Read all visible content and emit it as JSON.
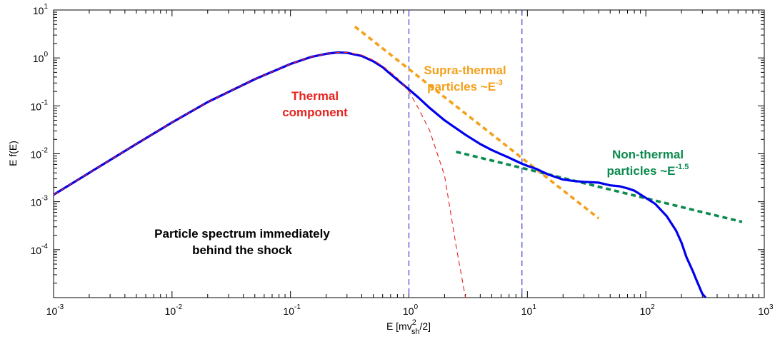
{
  "chart_data": {
    "type": "line",
    "x_scale": "log",
    "y_scale": "log",
    "xlim": [
      0.001,
      1000
    ],
    "ylim": [
      1e-05,
      10
    ],
    "x_ticks": [
      {
        "base": "10",
        "exp": "-3",
        "value": 0.001
      },
      {
        "base": "10",
        "exp": "-2",
        "value": 0.01
      },
      {
        "base": "10",
        "exp": "-1",
        "value": 0.1
      },
      {
        "base": "10",
        "exp": "0",
        "value": 1
      },
      {
        "base": "10",
        "exp": "1",
        "value": 10
      },
      {
        "base": "10",
        "exp": "2",
        "value": 100
      },
      {
        "base": "10",
        "exp": "3",
        "value": 1000
      }
    ],
    "y_ticks": [
      {
        "base": "10",
        "exp": "-4",
        "value": 0.0001
      },
      {
        "base": "10",
        "exp": "-3",
        "value": 0.001
      },
      {
        "base": "10",
        "exp": "-2",
        "value": 0.01
      },
      {
        "base": "10",
        "exp": "-1",
        "value": 0.1
      },
      {
        "base": "10",
        "exp": "0",
        "value": 1
      },
      {
        "base": "10",
        "exp": "1",
        "value": 10
      }
    ],
    "xlabel": {
      "pre": "E [mv",
      "sup": "2",
      "sub": "sh",
      "post": "/2]"
    },
    "ylabel": "E f(E)",
    "vlines": [
      1,
      9
    ],
    "series": [
      {
        "key": "spectrum",
        "color": "#0000ee",
        "style": "solid",
        "x": [
          0.001,
          0.002,
          0.005,
          0.01,
          0.02,
          0.05,
          0.1,
          0.15,
          0.2,
          0.25,
          0.3,
          0.4,
          0.5,
          0.6,
          0.7,
          0.8,
          1,
          1.2,
          1.5,
          2,
          3,
          4,
          5,
          6,
          7,
          8,
          9,
          10,
          12,
          15,
          20,
          25,
          30,
          40,
          50,
          60,
          70,
          80,
          100,
          120,
          150,
          180,
          200,
          220,
          250,
          270,
          300,
          320
        ],
        "y": [
          0.0014,
          0.004,
          0.016,
          0.045,
          0.12,
          0.36,
          0.75,
          1.05,
          1.22,
          1.3,
          1.28,
          1.1,
          0.85,
          0.64,
          0.46,
          0.35,
          0.22,
          0.15,
          0.09,
          0.05,
          0.025,
          0.016,
          0.012,
          0.0098,
          0.0083,
          0.0071,
          0.0062,
          0.0056,
          0.0048,
          0.0037,
          0.0029,
          0.0027,
          0.0026,
          0.0025,
          0.0022,
          0.0021,
          0.0019,
          0.0017,
          0.0012,
          0.0009,
          0.0005,
          0.00025,
          0.00014,
          7e-05,
          3.5e-05,
          2.2e-05,
          1.2e-05,
          1e-05
        ]
      },
      {
        "key": "thermal",
        "color": "#e8231e",
        "style": "dashed-thin",
        "x": [
          0.001,
          0.002,
          0.005,
          0.01,
          0.02,
          0.05,
          0.1,
          0.15,
          0.2,
          0.25,
          0.3,
          0.4,
          0.5,
          0.6,
          0.8,
          1,
          1.2,
          1.5,
          2,
          2.5,
          3
        ],
        "y": [
          0.0014,
          0.004,
          0.016,
          0.045,
          0.12,
          0.36,
          0.75,
          1.05,
          1.22,
          1.3,
          1.3,
          1.15,
          0.9,
          0.68,
          0.38,
          0.2,
          0.09,
          0.03,
          0.0035,
          0.00012,
          1e-05
        ]
      },
      {
        "key": "supra-fit",
        "color": "#f5a01a",
        "style": "dashed-thick",
        "x": [
          0.35,
          40
        ],
        "y": [
          4.5,
          0.00045
        ]
      },
      {
        "key": "nonthermal-fit",
        "color": "#0b8a4e",
        "style": "dashed-thick",
        "x": [
          2.5,
          650
        ],
        "y": [
          0.011,
          0.00038
        ]
      }
    ],
    "annotations": [
      {
        "key": "thermal",
        "color": "#e8231e",
        "lines": [
          {
            "text": "Thermal"
          },
          {
            "text": "component"
          }
        ]
      },
      {
        "key": "supra",
        "color": "#f5a01a",
        "lines": [
          {
            "text": "Supra-thermal"
          },
          {
            "text": "particles ~E",
            "sup": "-3"
          }
        ]
      },
      {
        "key": "nonthermal",
        "color": "#0b8a4e",
        "lines": [
          {
            "text": "Non-thermal"
          },
          {
            "text": "particles ~E",
            "sup": "-1.5"
          }
        ]
      },
      {
        "key": "title",
        "color": "#000000",
        "lines": [
          {
            "text": "Particle spectrum immediately"
          },
          {
            "text": "behind the shock"
          }
        ]
      }
    ]
  }
}
